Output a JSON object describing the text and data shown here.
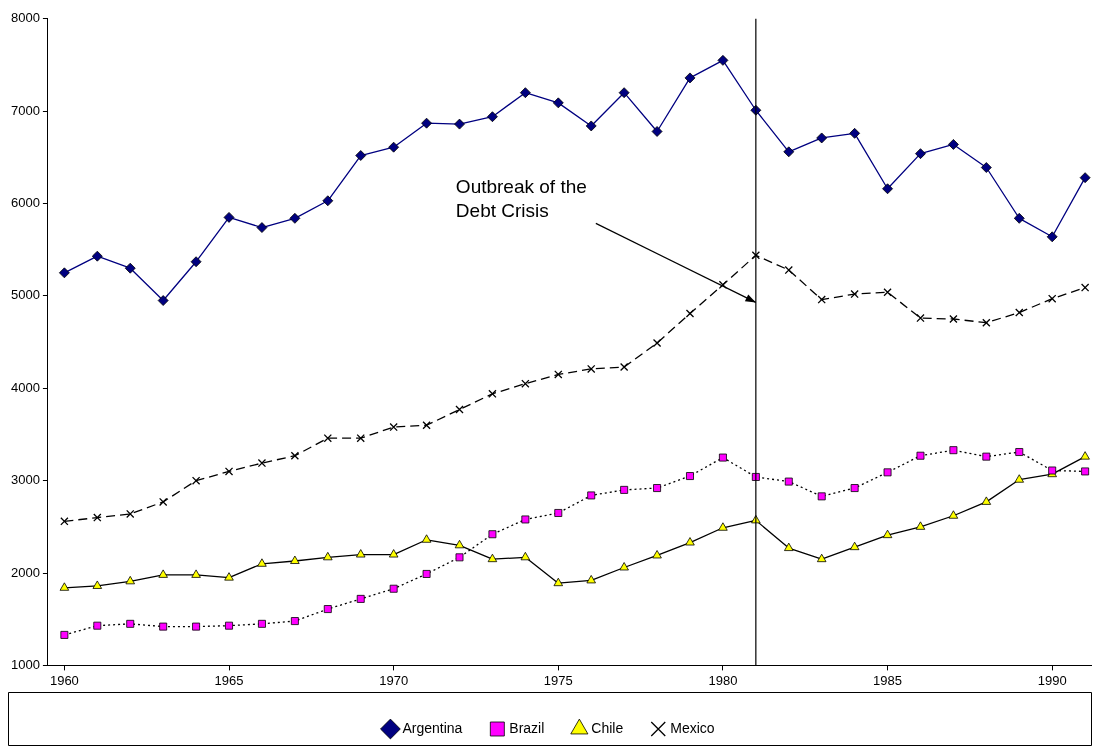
{
  "chart_data": {
    "type": "line",
    "x": [
      1960,
      1961,
      1962,
      1963,
      1964,
      1965,
      1966,
      1967,
      1968,
      1969,
      1970,
      1971,
      1972,
      1973,
      1974,
      1975,
      1976,
      1977,
      1978,
      1979,
      1980,
      1981,
      1982,
      1983,
      1984,
      1985,
      1986,
      1987,
      1988,
      1989,
      1990,
      1991
    ],
    "xlim": [
      1959.5,
      1991.2
    ],
    "xticks": [
      1960,
      1965,
      1970,
      1975,
      1980,
      1985,
      1990
    ],
    "ylim": [
      1000,
      8000
    ],
    "yticks": [
      1000,
      2000,
      3000,
      4000,
      5000,
      6000,
      7000,
      8000
    ],
    "grid": false,
    "legend": "bottom",
    "series": [
      {
        "name": "Argentina",
        "color": "#000080",
        "marker": "diamond",
        "line_style": "solid",
        "values": [
          5250,
          5430,
          5300,
          4950,
          5370,
          5850,
          5740,
          5840,
          6030,
          6520,
          6610,
          6870,
          6860,
          6940,
          7200,
          7090,
          6840,
          7200,
          6780,
          7360,
          7550,
          7010,
          6560,
          6710,
          6760,
          6160,
          6540,
          6640,
          6390,
          5840,
          5640,
          6280
        ]
      },
      {
        "name": "Brazil",
        "color": "#000000",
        "colors": [
          "#ff00ff",
          "#ff00ff",
          "#ff00ff",
          "#ff00ff",
          "#ff00ff",
          "#ff00ff",
          "#ff00ff",
          "#ff00ff",
          "#ff00ff",
          "#ff00ff",
          "#ff00ff",
          "#ff00ff",
          "#ff00ff",
          "#ff00ff",
          "#ff00ff",
          "#ff00ff",
          "#ff00ff",
          "#ff00ff",
          "#ff00ff",
          "#ff00ff",
          "#ff00ff",
          "#ff00ff",
          "#ff00ff",
          "#ff00ff",
          "#ff00ff",
          "#ff00ff",
          "#ff00ff",
          "#ff00ff",
          "#ff00ff",
          "#ff00ff",
          "#ff00ff",
          "#ff00ff"
        ],
        "marker": "square",
        "line_style": "dotted",
        "values": [
          1330,
          1430,
          1450,
          1420,
          1420,
          1430,
          1450,
          1480,
          1610,
          1720,
          1830,
          1990,
          2170,
          2420,
          2580,
          2650,
          2840,
          2900,
          2920,
          3050,
          3250,
          3040,
          2990,
          2830,
          2920,
          3090,
          3270,
          3330,
          3260,
          3310,
          3110,
          3100
        ]
      },
      {
        "name": "Chile",
        "color": "#000000",
        "colors": [
          "#ffff00",
          "#ffff00",
          "#ffff00",
          "#ffff00",
          "#ffff00",
          "#ffff00",
          "#ffff00",
          "#ffff00",
          "#ffff00",
          "#ffff00",
          "#ffff00",
          "#ffff00",
          "#ffff00",
          "#ffff00",
          "#ffff00",
          "#ffff00",
          "#ffff00",
          "#ffff00",
          "#ffff00",
          "#ffff00",
          "#ffff00",
          "#ffff00",
          "#ffff00",
          "#ffff00",
          "#ffff00",
          "#ffff00",
          "#ffff00",
          "#ffff00",
          "#ffff00",
          "#ffff00",
          "#ffff00",
          "#ffff00"
        ],
        "marker": "triangle",
        "line_style": "solid",
        "values": [
          1840,
          1860,
          1910,
          1980,
          1980,
          1950,
          2100,
          2130,
          2170,
          2200,
          2200,
          2360,
          2300,
          2150,
          2170,
          1890,
          1920,
          2060,
          2190,
          2330,
          2490,
          2570,
          2270,
          2150,
          2280,
          2410,
          2500,
          2620,
          2770,
          3010,
          3070,
          3260
        ]
      },
      {
        "name": "Mexico",
        "color": "#000000",
        "marker": "cross",
        "line_style": "dashed",
        "values": [
          2560,
          2600,
          2640,
          2770,
          3000,
          3100,
          3190,
          3270,
          3460,
          3460,
          3580,
          3600,
          3770,
          3940,
          4050,
          4150,
          4210,
          4230,
          4490,
          4810,
          5120,
          5440,
          5280,
          4960,
          5020,
          5040,
          4760,
          4750,
          4710,
          4820,
          4970,
          5090
        ]
      }
    ],
    "ref_lines": [
      {
        "axis": "x",
        "value": 1981,
        "color": "#000000"
      }
    ],
    "annotations": [
      {
        "text": "Outbreak of the\nDebt Crisis",
        "x": 1981,
        "y": 4930
      }
    ]
  }
}
